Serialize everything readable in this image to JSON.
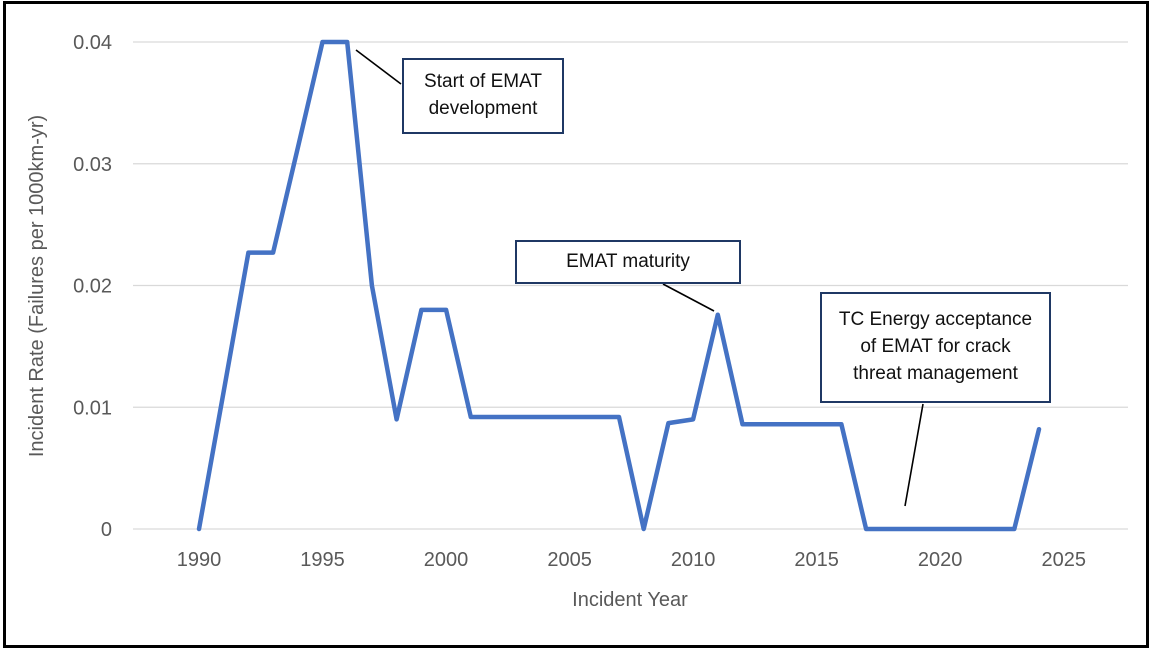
{
  "chart_data": {
    "type": "line",
    "title": "",
    "xlabel": "Incident Year",
    "ylabel": "Incident Rate (Failures per 1000km-yr)",
    "ylim": [
      0,
      0.04
    ],
    "xlim": [
      1987,
      2028
    ],
    "grid": "horizontal",
    "legend": "none",
    "series_name": "Incident Rate",
    "x": [
      1990,
      1991,
      1992,
      1993,
      1994,
      1995,
      1996,
      1997,
      1998,
      1999,
      2000,
      2001,
      2002,
      2003,
      2004,
      2005,
      2006,
      2007,
      2008,
      2009,
      2010,
      2011,
      2012,
      2013,
      2014,
      2015,
      2016,
      2017,
      2018,
      2019,
      2020,
      2021,
      2022,
      2023,
      2024
    ],
    "values": [
      0,
      0.0113,
      0.0227,
      0.0227,
      0.0313,
      0.04,
      0.04,
      0.02,
      0.009,
      0.018,
      0.018,
      0.0092,
      0.0092,
      0.0092,
      0.0092,
      0.0092,
      0.0092,
      0.0092,
      0,
      0.0087,
      0.009,
      0.0176,
      0.0086,
      0.0086,
      0.0086,
      0.0086,
      0.0086,
      0,
      0,
      0,
      0,
      0,
      0,
      0,
      0.0082
    ],
    "xticks": {
      "values": [
        1990,
        1995,
        2000,
        2005,
        2010,
        2015,
        2020,
        2025
      ],
      "labels": [
        "1990",
        "1995",
        "2000",
        "2005",
        "2010",
        "2015",
        "2020",
        "2025"
      ]
    },
    "yticks": {
      "values": [
        0,
        0.01,
        0.02,
        0.03,
        0.04
      ],
      "labels": [
        "0",
        "0.01",
        "0.02",
        "0.03",
        "0.04"
      ]
    },
    "annotations": [
      {
        "text": "Start of EMAT development",
        "points_to_year": 1996,
        "points_to_value": 0.04
      },
      {
        "text": "EMAT maturity",
        "points_to_year": 2011,
        "points_to_value": 0.0176
      },
      {
        "text": "TC Energy acceptance of EMAT for crack threat management",
        "points_to_year": 2018,
        "points_to_value": 0
      }
    ],
    "colors": {
      "line": "#4472C4",
      "gridline": "#d9d9d9",
      "axis_text": "#595959",
      "annotation_border": "#1f3864",
      "leader_line": "#000000",
      "outer_frame": "#000000",
      "background": "#ffffff"
    }
  }
}
